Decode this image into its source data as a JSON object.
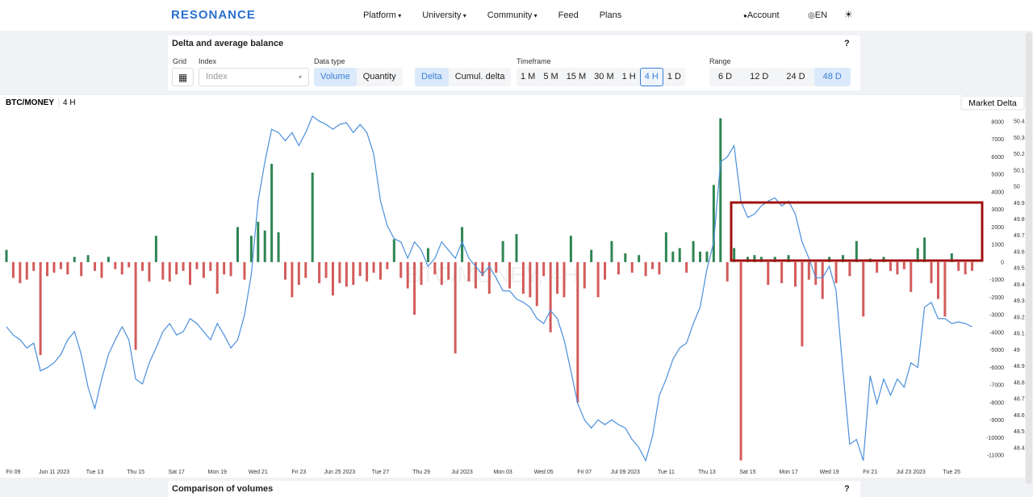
{
  "nav": {
    "logo": "RESONANCE",
    "items": [
      {
        "label": "Platform",
        "dropdown": true
      },
      {
        "label": "University",
        "dropdown": true
      },
      {
        "label": "Community",
        "dropdown": true
      },
      {
        "label": "Feed",
        "dropdown": false
      },
      {
        "label": "Plans",
        "dropdown": false
      }
    ],
    "account": "Account",
    "language": "EN"
  },
  "panel": {
    "title": "Delta and average balance",
    "help": "?",
    "grid_label": "Grid",
    "index_label": "Index",
    "index_placeholder": "Index",
    "data_type_label": "Data type",
    "data_type": {
      "options": [
        "Volume",
        "Quantity"
      ],
      "selected": 0
    },
    "mode": {
      "options": [
        "Delta",
        "Cumul. delta"
      ],
      "selected": 0
    },
    "timeframe_label": "Timeframe",
    "timeframe": {
      "options": [
        "1 M",
        "5 M",
        "15 M",
        "30 M",
        "1 H",
        "4 H",
        "1 D"
      ],
      "selected": 5
    },
    "range_label": "Range",
    "range": {
      "options": [
        "6 D",
        "12 D",
        "24 D",
        "48 D"
      ],
      "selected": 3
    }
  },
  "chart_data": {
    "type": "bar",
    "title": "BTC/MONEY",
    "subtitle": "4 H",
    "watermark": "BTC/MONEY, 4H",
    "series": [
      {
        "name": "Market Delta",
        "type": "bar",
        "positive_color": "#2e8553",
        "negative_color": "#d35b5b",
        "values": [
          700,
          -900,
          -1200,
          -1000,
          -500,
          -5300,
          -800,
          -600,
          -400,
          -700,
          300,
          -800,
          400,
          -500,
          -900,
          300,
          -400,
          -700,
          -300,
          -5000,
          -500,
          -1100,
          1500,
          -1000,
          -1100,
          -700,
          -500,
          -1300,
          -400,
          -900,
          -500,
          -1800,
          -700,
          -800,
          2000,
          -1000,
          1500,
          2300,
          1800,
          5600,
          1700,
          -1000,
          -2000,
          -1300,
          -900,
          5100,
          -1200,
          -900,
          -1900,
          -1200,
          -1400,
          -1300,
          -800,
          -1100,
          -600,
          -1000,
          -400,
          1300,
          -900,
          -1500,
          -3000,
          -1300,
          800,
          -700,
          -1300,
          -1000,
          -5200,
          2000,
          -1100,
          -1500,
          -800,
          -1800,
          -600,
          1200,
          -1500,
          1600,
          -1800,
          -2000,
          -2500,
          -800,
          -4000,
          -1800,
          -2000,
          1500,
          -8000,
          -1500,
          700,
          -2000,
          -1000,
          1200,
          -700,
          500,
          -600,
          400,
          -800,
          -400,
          -700,
          1700,
          600,
          800,
          -600,
          1200,
          600,
          600,
          4400,
          8200,
          -1100,
          800,
          -11300,
          300,
          400,
          300,
          -1300,
          300,
          -1200,
          400,
          -1400,
          -4800,
          -1000,
          -1300,
          -2100,
          300,
          -1200,
          400,
          -800,
          1200,
          -3100,
          200,
          -600,
          300,
          -500,
          -700,
          -400,
          -1700,
          800,
          1400,
          -1200,
          -2100,
          -3100,
          500,
          -500,
          -700,
          -500
        ]
      },
      {
        "type": "line",
        "axis": "y2",
        "color": "#4a8fdb",
        "values": [
          49.14,
          49.09,
          49.06,
          49.01,
          49.04,
          48.87,
          48.89,
          48.92,
          48.97,
          49.06,
          49.11,
          48.97,
          48.77,
          48.64,
          48.82,
          48.97,
          49.06,
          49.14,
          49.06,
          48.82,
          48.79,
          48.92,
          49.01,
          49.11,
          49.16,
          49.09,
          49.11,
          49.19,
          49.16,
          49.11,
          49.06,
          49.16,
          49.09,
          49.01,
          49.06,
          49.21,
          49.46,
          49.91,
          50.15,
          50.35,
          50.33,
          50.28,
          50.33,
          50.25,
          50.33,
          50.43,
          50.4,
          50.38,
          50.35,
          50.38,
          50.39,
          50.33,
          50.38,
          50.33,
          50.2,
          49.91,
          49.76,
          49.68,
          49.66,
          49.56,
          49.66,
          49.61,
          49.51,
          49.56,
          49.66,
          49.61,
          49.56,
          49.66,
          49.56,
          49.51,
          49.46,
          49.51,
          49.44,
          49.36,
          49.36,
          49.31,
          49.29,
          49.26,
          49.19,
          49.16,
          49.24,
          49.19,
          49.06,
          48.87,
          48.67,
          48.57,
          48.52,
          48.57,
          48.54,
          48.57,
          48.54,
          48.52,
          48.45,
          48.4,
          48.32,
          48.47,
          48.72,
          48.82,
          48.94,
          49.01,
          49.04,
          49.16,
          49.26,
          49.49,
          49.66,
          50.15,
          50.18,
          50.25,
          49.91,
          49.81,
          49.83,
          49.88,
          49.91,
          49.93,
          49.88,
          49.91,
          49.83,
          49.66,
          49.56,
          49.44,
          49.44,
          49.51,
          49.36,
          48.87,
          48.42,
          48.45,
          48.32,
          48.84,
          48.67,
          48.82,
          48.72,
          48.82,
          48.77,
          48.92,
          48.89,
          49.26,
          49.29,
          49.19,
          49.19,
          49.16,
          49.17,
          49.16,
          49.14
        ]
      }
    ],
    "xlim": [
      0,
      143
    ],
    "xticks": [
      {
        "value": 1,
        "label": "Fri 09"
      },
      {
        "value": 7,
        "label": "Jun 11 2023"
      },
      {
        "value": 13,
        "label": "Tue 13"
      },
      {
        "value": 19,
        "label": "Thu 15"
      },
      {
        "value": 25,
        "label": "Sat 17"
      },
      {
        "value": 31,
        "label": "Mon 19"
      },
      {
        "value": 37,
        "label": "Wed 21"
      },
      {
        "value": 43,
        "label": "Fri 23"
      },
      {
        "value": 49,
        "label": "Jun 25 2023"
      },
      {
        "value": 55,
        "label": "Tue 27"
      },
      {
        "value": 61,
        "label": "Thu 29"
      },
      {
        "value": 67,
        "label": "Jul 2023"
      },
      {
        "value": 73,
        "label": "Mon 03"
      },
      {
        "value": 79,
        "label": "Wed 05"
      },
      {
        "value": 85,
        "label": "Fri 07"
      },
      {
        "value": 91,
        "label": "Jul 09 2023"
      },
      {
        "value": 97,
        "label": "Tue 11"
      },
      {
        "value": 103,
        "label": "Thu 13"
      },
      {
        "value": 109,
        "label": "Sat 15"
      },
      {
        "value": 115,
        "label": "Mon 17"
      },
      {
        "value": 121,
        "label": "Wed 19"
      },
      {
        "value": 127,
        "label": "Fri 21"
      },
      {
        "value": 133,
        "label": "Jul 23 2023"
      },
      {
        "value": 139,
        "label": "Tue 25"
      }
    ],
    "ylim": [
      -11500,
      8500
    ],
    "yticks": [
      8000,
      7000,
      6000,
      5000,
      4000,
      3000,
      2000,
      1000,
      0,
      -1000,
      -2000,
      -3000,
      -4000,
      -5000,
      -6000,
      -7000,
      -8000,
      -9000,
      -10000,
      -11000
    ],
    "y2lim": [
      48.3,
      50.45
    ],
    "y2ticks": [
      50.4,
      50.3,
      50.2,
      50.1,
      50,
      49.9,
      49.8,
      49.7,
      49.6,
      49.5,
      49.4,
      49.3,
      49.2,
      49.1,
      49,
      48.9,
      48.8,
      48.7,
      48.6,
      48.5,
      48.4
    ],
    "grid": false
  },
  "next_panel": {
    "title": "Comparison of volumes",
    "help": "?"
  }
}
